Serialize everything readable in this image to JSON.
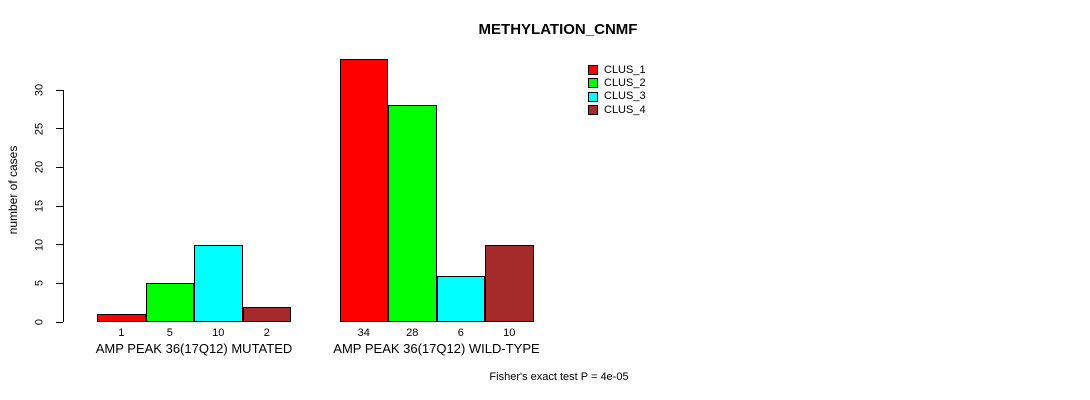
{
  "chart_data": {
    "type": "bar",
    "title": "METHYLATION_CNMF",
    "ylabel": "number of cases",
    "xlabel": "",
    "categories": [
      "AMP PEAK 36(17Q12) MUTATED",
      "AMP PEAK 36(17Q12) WILD-TYPE"
    ],
    "series": [
      {
        "name": "CLUS_1",
        "color": "#FF0000",
        "values": [
          1,
          34
        ]
      },
      {
        "name": "CLUS_2",
        "color": "#00FF00",
        "values": [
          5,
          28
        ]
      },
      {
        "name": "CLUS_3",
        "color": "#00FFFF",
        "values": [
          10,
          6
        ]
      },
      {
        "name": "CLUS_4",
        "color": "#A52A2A",
        "values": [
          2,
          10
        ]
      }
    ],
    "yticks": [
      0,
      5,
      10,
      15,
      20,
      25,
      30
    ],
    "ylim": [
      0,
      34
    ],
    "grid": false,
    "legend_position": "top-right",
    "bar_value_labels_shown": true
  },
  "footnote": "Fisher's exact test P = 4e-05"
}
